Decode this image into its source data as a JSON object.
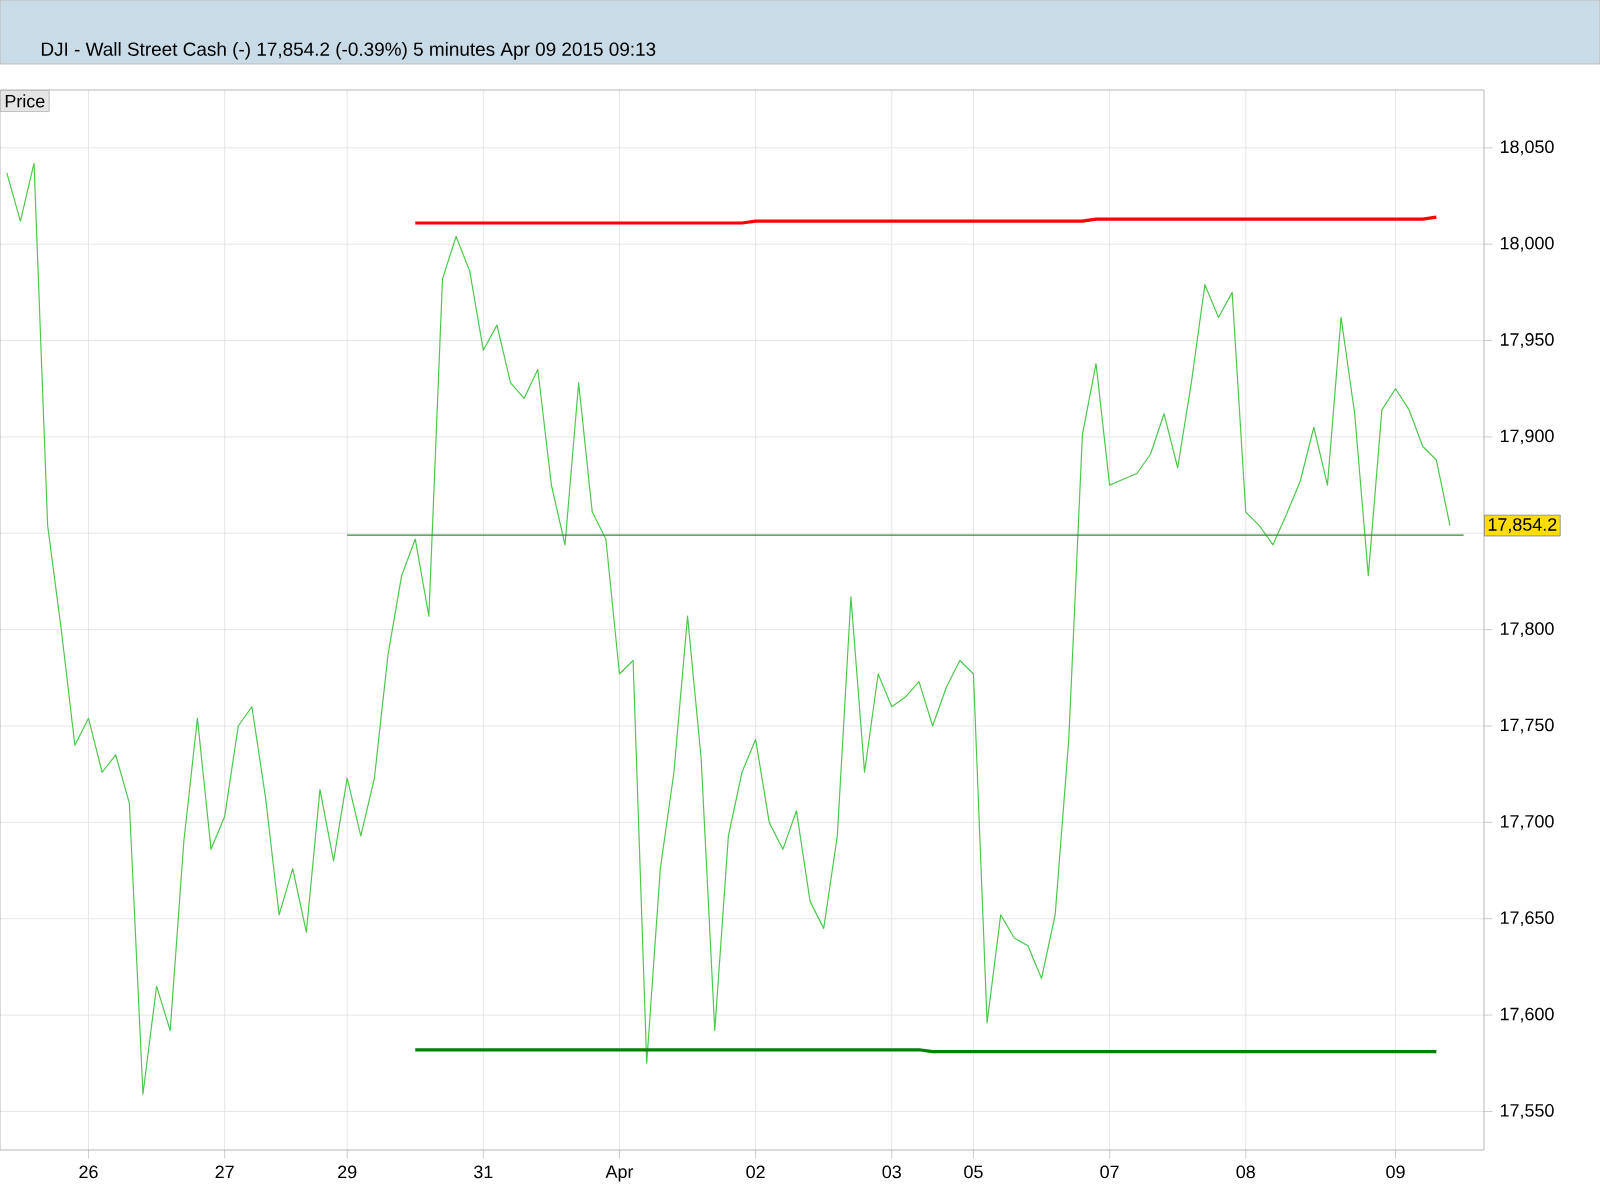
{
  "chart_data": {
    "type": "line",
    "title": "DJI - Wall Street Cash (-)    17,854.2 (-0.39%)    5 minutes  Apr 09 2015 09:13",
    "ylabel": "Price",
    "categories": [
      null,
      null,
      null,
      null,
      null,
      null,
      "26",
      null,
      null,
      null,
      null,
      null,
      null,
      null,
      null,
      null,
      "27",
      null,
      null,
      null,
      null,
      null,
      null,
      null,
      null,
      "29",
      null,
      null,
      null,
      null,
      null,
      null,
      null,
      null,
      null,
      "31",
      null,
      null,
      null,
      null,
      null,
      null,
      null,
      null,
      null,
      "Apr",
      null,
      null,
      null,
      null,
      null,
      null,
      null,
      null,
      null,
      "02",
      null,
      null,
      null,
      null,
      null,
      null,
      null,
      null,
      null,
      "03",
      null,
      null,
      null,
      null,
      null,
      "05",
      null,
      null,
      null,
      null,
      null,
      null,
      null,
      null,
      null,
      "07",
      null,
      null,
      null,
      null,
      null,
      null,
      null,
      null,
      null,
      "08",
      null,
      null,
      null,
      null,
      null,
      null,
      null,
      null,
      null,
      null,
      "09",
      null,
      null,
      null,
      null,
      null,
      null
    ],
    "series": [
      {
        "color": "#4cc94c",
        "values": [
          18037,
          18012,
          18042,
          17854,
          17800,
          17740,
          17754,
          17726,
          17735,
          17710,
          17559,
          17615,
          17592,
          17690,
          17754,
          17686,
          17703,
          17750,
          17760,
          17713,
          17652,
          17676,
          17643,
          17717,
          17680,
          17723,
          17693,
          17723,
          17787,
          17828,
          17847,
          17807,
          17982,
          18004,
          17986,
          17945,
          17958,
          17928,
          17920,
          17935,
          17875,
          17844,
          17928,
          17861,
          17847,
          17777,
          17784,
          17575,
          17676,
          17726,
          17807,
          17733,
          17592,
          17693,
          17726,
          17743,
          17700,
          17686,
          17706,
          17659,
          17645,
          17693,
          17817,
          17726,
          17777,
          17760,
          17765,
          17773,
          17750,
          17770,
          17784,
          17777,
          17596,
          17652,
          17640,
          17636,
          17619,
          17652,
          17743,
          17901,
          17938,
          17875,
          17878,
          17881,
          17891,
          17912,
          17884,
          17928,
          17979,
          17962,
          17975,
          17861,
          17854,
          17844,
          17860,
          17877,
          17905,
          17875,
          17962,
          17912,
          17828,
          17914,
          17925,
          17914,
          17895,
          17888,
          17854,
          null,
          null
        ]
      },
      {
        "color": "#ff0000",
        "values": [
          null,
          null,
          null,
          null,
          null,
          null,
          null,
          null,
          null,
          null,
          null,
          null,
          null,
          null,
          null,
          null,
          null,
          null,
          null,
          null,
          null,
          null,
          null,
          null,
          null,
          null,
          null,
          null,
          null,
          null,
          18011,
          18011,
          18011,
          18011,
          18011,
          18011,
          18011,
          18011,
          18011,
          18011,
          18011,
          18011,
          18011,
          18011,
          18011,
          18011,
          18011,
          18011,
          18011,
          18011,
          18011,
          18011,
          18011,
          18011,
          18011,
          18012,
          18012,
          18012,
          18012,
          18012,
          18012,
          18012,
          18012,
          18012,
          18012,
          18012,
          18012,
          18012,
          18012,
          18012,
          18012,
          18012,
          18012,
          18012,
          18012,
          18012,
          18012,
          18012,
          18012,
          18012,
          18013,
          18013,
          18013,
          18013,
          18013,
          18013,
          18013,
          18013,
          18013,
          18013,
          18013,
          18013,
          18013,
          18013,
          18013,
          18013,
          18013,
          18013,
          18013,
          18013,
          18013,
          18013,
          18013,
          18013,
          18013,
          18014,
          null,
          null,
          null
        ]
      },
      {
        "color": "#008000",
        "values": [
          null,
          null,
          null,
          null,
          null,
          null,
          null,
          null,
          null,
          null,
          null,
          null,
          null,
          null,
          null,
          null,
          null,
          null,
          null,
          null,
          null,
          null,
          null,
          null,
          null,
          null,
          null,
          null,
          null,
          null,
          17582,
          17582,
          17582,
          17582,
          17582,
          17582,
          17582,
          17582,
          17582,
          17582,
          17582,
          17582,
          17582,
          17582,
          17582,
          17582,
          17582,
          17582,
          17582,
          17582,
          17582,
          17582,
          17582,
          17582,
          17582,
          17582,
          17582,
          17582,
          17582,
          17582,
          17582,
          17582,
          17582,
          17582,
          17582,
          17582,
          17582,
          17582,
          17581,
          17581,
          17581,
          17581,
          17581,
          17581,
          17581,
          17581,
          17581,
          17581,
          17581,
          17581,
          17581,
          17581,
          17581,
          17581,
          17581,
          17581,
          17581,
          17581,
          17581,
          17581,
          17581,
          17581,
          17581,
          17581,
          17581,
          17581,
          17581,
          17581,
          17581,
          17581,
          17581,
          17581,
          17581,
          17581,
          17581,
          17581,
          null,
          null,
          null
        ]
      },
      {
        "color": "#2e8b2e",
        "values": [
          null,
          null,
          null,
          null,
          null,
          null,
          null,
          null,
          null,
          null,
          null,
          null,
          null,
          null,
          null,
          null,
          null,
          null,
          null,
          null,
          null,
          null,
          null,
          null,
          null,
          17849,
          17849,
          17849,
          17849,
          17849,
          17849,
          17849,
          17849,
          17849,
          17849,
          17849,
          17849,
          17849,
          17849,
          17849,
          17849,
          17849,
          17849,
          17849,
          17849,
          17849,
          17849,
          17849,
          17849,
          17849,
          17849,
          17849,
          17849,
          17849,
          17849,
          17849,
          17849,
          17849,
          17849,
          17849,
          17849,
          17849,
          17849,
          17849,
          17849,
          17849,
          17849,
          17849,
          17849,
          17849,
          17849,
          17849,
          17849,
          17849,
          17849,
          17849,
          17849,
          17849,
          17849,
          17849,
          17849,
          17849,
          17849,
          17849,
          17849,
          17849,
          17849,
          17849,
          17849,
          17849,
          17849,
          17849,
          17849,
          17849,
          17849,
          17849,
          17849,
          17849,
          17849,
          17849,
          17849,
          17849,
          17849,
          17849,
          17849,
          17849,
          17849,
          17849,
          null
        ]
      }
    ],
    "annotations": [
      "17,854.2"
    ],
    "ylim": [
      17530,
      18080
    ],
    "yticks": [
      {
        "value": 17550,
        "label": "17,550"
      },
      {
        "value": 17600,
        "label": "17,600"
      },
      {
        "value": 17650,
        "label": "17,650"
      },
      {
        "value": 17700,
        "label": "17,700"
      },
      {
        "value": 17750,
        "label": "17,750"
      },
      {
        "value": 17800,
        "label": "17,800"
      },
      {
        "value": 17850,
        "label": null
      },
      {
        "value": 17900,
        "label": "17,900"
      },
      {
        "value": 17950,
        "label": "17,950"
      },
      {
        "value": 18000,
        "label": "18,000"
      },
      {
        "value": 18050,
        "label": "18,050"
      }
    ],
    "grid": true
  }
}
